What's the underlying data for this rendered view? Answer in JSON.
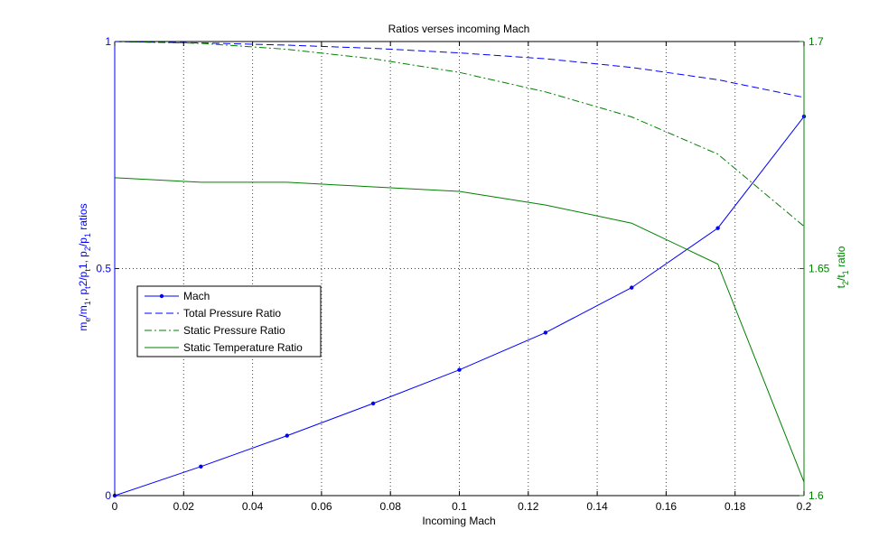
{
  "chart_data": {
    "type": "line",
    "title": "Ratios verses incoming Mach",
    "xlabel": "Incoming Mach",
    "ylabel_left_parts": [
      {
        "t": "m",
        "s": "n"
      },
      {
        "t": "e",
        "s": "sub"
      },
      {
        "t": "/m",
        "s": "n"
      },
      {
        "t": "1",
        "s": "sub"
      },
      {
        "t": ", p",
        "s": "n"
      },
      {
        "t": "t",
        "s": "sub"
      },
      {
        "t": "2/p",
        "s": "n"
      },
      {
        "t": "t",
        "s": "sub"
      },
      {
        "t": "1, p",
        "s": "n"
      },
      {
        "t": "2",
        "s": "sub"
      },
      {
        "t": "/p",
        "s": "n"
      },
      {
        "t": "1",
        "s": "sub"
      },
      {
        "t": " ratios",
        "s": "n"
      }
    ],
    "ylabel_right_parts": [
      {
        "t": "t",
        "s": "n"
      },
      {
        "t": "2",
        "s": "sub"
      },
      {
        "t": "/t",
        "s": "n"
      },
      {
        "t": "1",
        "s": "sub"
      },
      {
        "t": " ratio",
        "s": "n"
      }
    ],
    "xlim": [
      0,
      0.2
    ],
    "ylim_left": [
      0,
      1
    ],
    "ylim_right": [
      1.6,
      1.7
    ],
    "grid": "vertical-dotted",
    "x_ticks": [
      0,
      0.02,
      0.04,
      0.06,
      0.08,
      0.1,
      0.12,
      0.14,
      0.16,
      0.18,
      0.2
    ],
    "x_tick_labels": [
      "0",
      "0.02",
      "0.04",
      "0.06",
      "0.08",
      "0.1",
      "0.12",
      "0.14",
      "0.16",
      "0.18",
      "0.2"
    ],
    "y_ticks_left": [
      0,
      0.5,
      1
    ],
    "y_tick_labels_left": [
      "0",
      "0.5",
      "1"
    ],
    "y_ticks_right": [
      1.6,
      1.65,
      1.7
    ],
    "y_tick_labels_right": [
      "1.6",
      "1.65",
      "1.7"
    ],
    "legend_position": "middle-left",
    "series": [
      {
        "name": "Mach",
        "axis": "left",
        "color": "#0000ff",
        "style": "solid",
        "marker": "dot",
        "x": [
          0,
          0.025,
          0.05,
          0.075,
          0.1,
          0.125,
          0.15,
          0.175,
          0.2
        ],
        "y": [
          0,
          0.064,
          0.132,
          0.203,
          0.277,
          0.359,
          0.458,
          0.589,
          0.835
        ]
      },
      {
        "name": "Total Pressure Ratio",
        "axis": "left",
        "color": "#0000ff",
        "style": "dashed",
        "marker": "none",
        "x": [
          0,
          0.025,
          0.05,
          0.075,
          0.1,
          0.125,
          0.15,
          0.175,
          0.2
        ],
        "y": [
          1.0,
          0.997,
          0.992,
          0.985,
          0.975,
          0.962,
          0.943,
          0.916,
          0.877
        ]
      },
      {
        "name": "Static Pressure Ratio",
        "axis": "left",
        "color": "#008000",
        "style": "dashdot",
        "marker": "none",
        "x": [
          0,
          0.025,
          0.05,
          0.075,
          0.1,
          0.125,
          0.15,
          0.175,
          0.2
        ],
        "y": [
          1.0,
          0.996,
          0.983,
          0.962,
          0.932,
          0.889,
          0.834,
          0.752,
          0.593
        ]
      },
      {
        "name": "Static Temperature Ratio",
        "axis": "right",
        "color": "#008000",
        "style": "solid",
        "marker": "none",
        "x": [
          0,
          0.025,
          0.05,
          0.075,
          0.1,
          0.125,
          0.15,
          0.175,
          0.2
        ],
        "y": [
          1.67,
          1.669,
          1.669,
          1.668,
          1.667,
          1.664,
          1.66,
          1.651,
          1.603
        ]
      }
    ]
  },
  "colors": {
    "left_axis": "#0000ff",
    "right_axis": "#008000",
    "grid": "#444444",
    "text": "#000000"
  }
}
